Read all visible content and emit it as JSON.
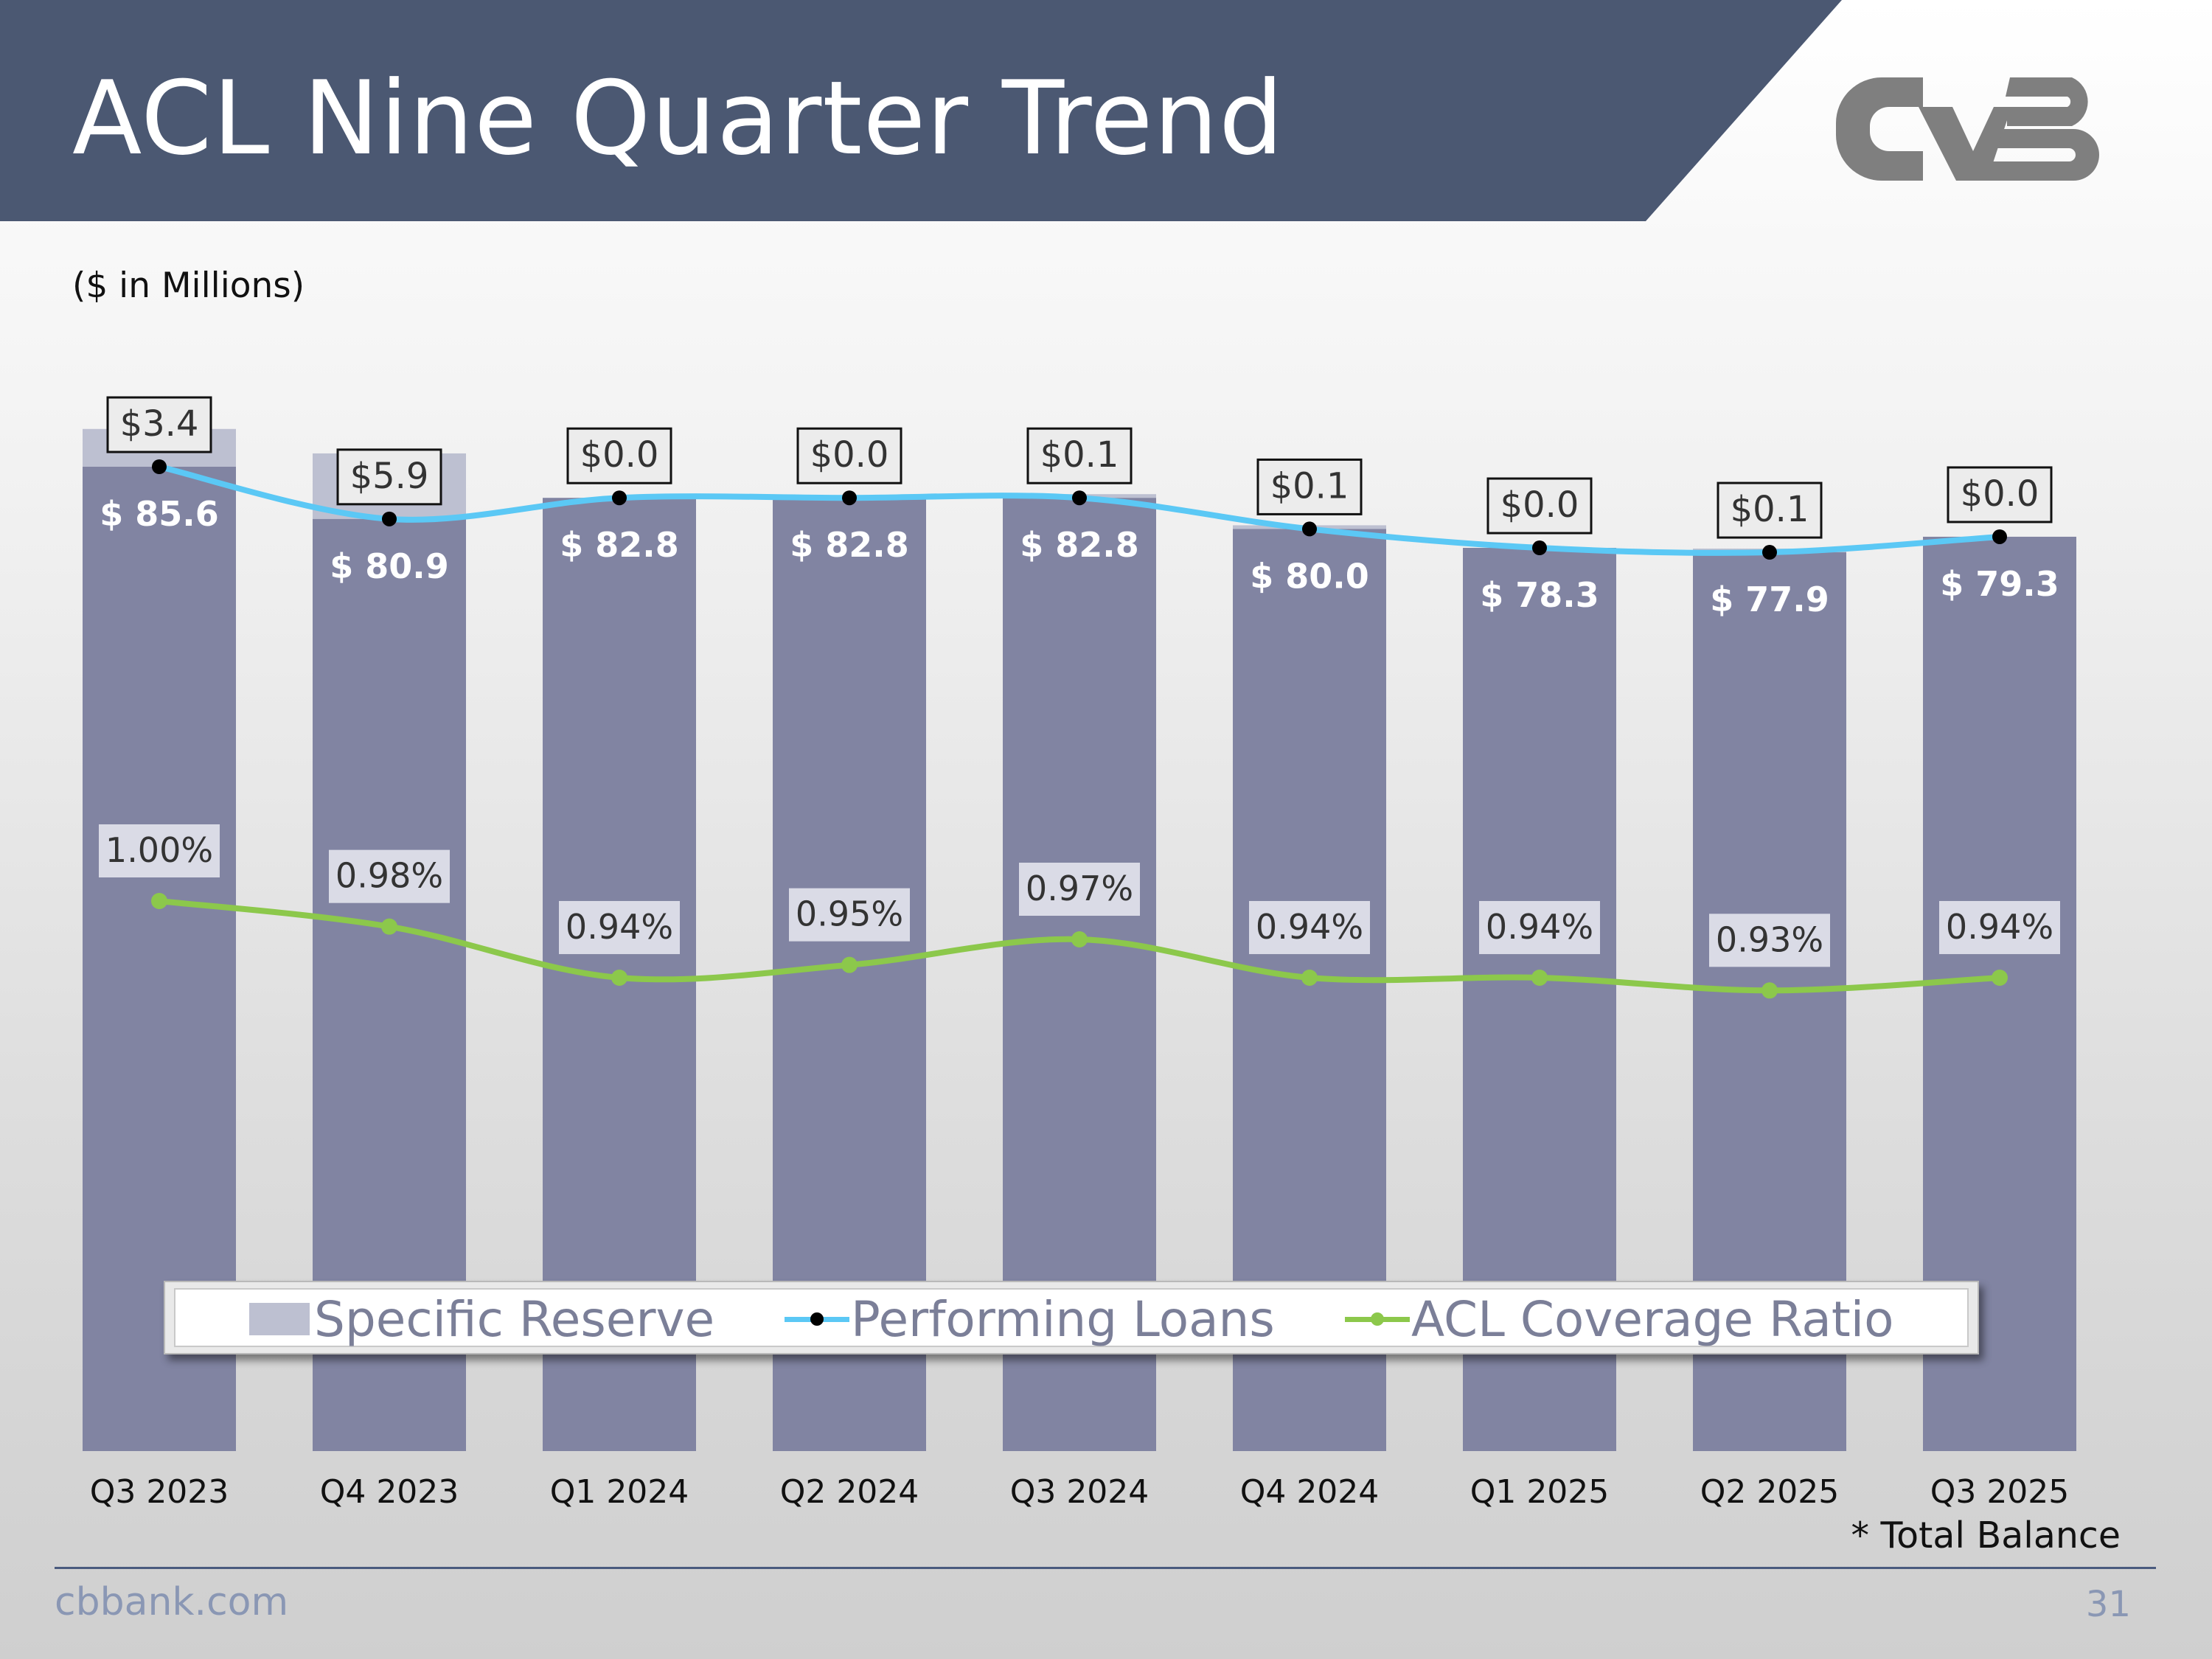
{
  "header": {
    "title": "ACL Nine Quarter Trend",
    "subtitle": "($ in Millions)"
  },
  "logo": {
    "name": "CVB logo",
    "color": "#7f7f7f"
  },
  "colors": {
    "header_bg": "#4b5872",
    "performing_bar": "#8184a2",
    "specific_reserve": "#bdc0d1",
    "performing_line": "#5bc8f5",
    "coverage_line": "#8cc84b",
    "marker": "#000000"
  },
  "chart_data": {
    "type": "bar",
    "categories": [
      "Q3 2023",
      "Q4 2023",
      "Q1 2024",
      "Q2 2024",
      "Q3 2024",
      "Q4 2024",
      "Q1 2025",
      "Q2 2025",
      "Q3 2025"
    ],
    "series": [
      {
        "name": "Specific Reserve",
        "type": "bar",
        "stacked": true,
        "values": [
          3.4,
          5.9,
          0.0,
          0.0,
          0.1,
          0.1,
          0.0,
          0.1,
          0.0
        ],
        "labels": [
          "$3.4",
          "$5.9",
          "$0.0",
          "$0.0",
          "$0.1",
          "$0.1",
          "$0.0",
          "$0.1",
          "$0.0"
        ]
      },
      {
        "name": "Performing Loans",
        "type": "line",
        "values": [
          85.6,
          80.9,
          82.8,
          82.8,
          82.8,
          80.0,
          78.3,
          77.9,
          79.3
        ],
        "labels": [
          "$ 85.6",
          "$ 80.9",
          "$ 82.8",
          "$ 82.8",
          "$ 82.8",
          "$ 80.0",
          "$ 78.3",
          "$ 77.9",
          "$ 79.3"
        ]
      },
      {
        "name": "ACL Coverage Ratio",
        "type": "line",
        "axis": "secondary",
        "values": [
          1.0,
          0.98,
          0.94,
          0.95,
          0.97,
          0.94,
          0.94,
          0.93,
          0.94
        ],
        "labels": [
          "1.00%",
          "0.98%",
          "0.94%",
          "0.95%",
          "0.97%",
          "0.94%",
          "0.94%",
          "0.93%",
          "0.94%"
        ]
      }
    ],
    "grid": false,
    "legend_position": "bottom",
    "note": "* Total Balance"
  },
  "footer": {
    "site": "cbbank.com",
    "page": "31"
  }
}
